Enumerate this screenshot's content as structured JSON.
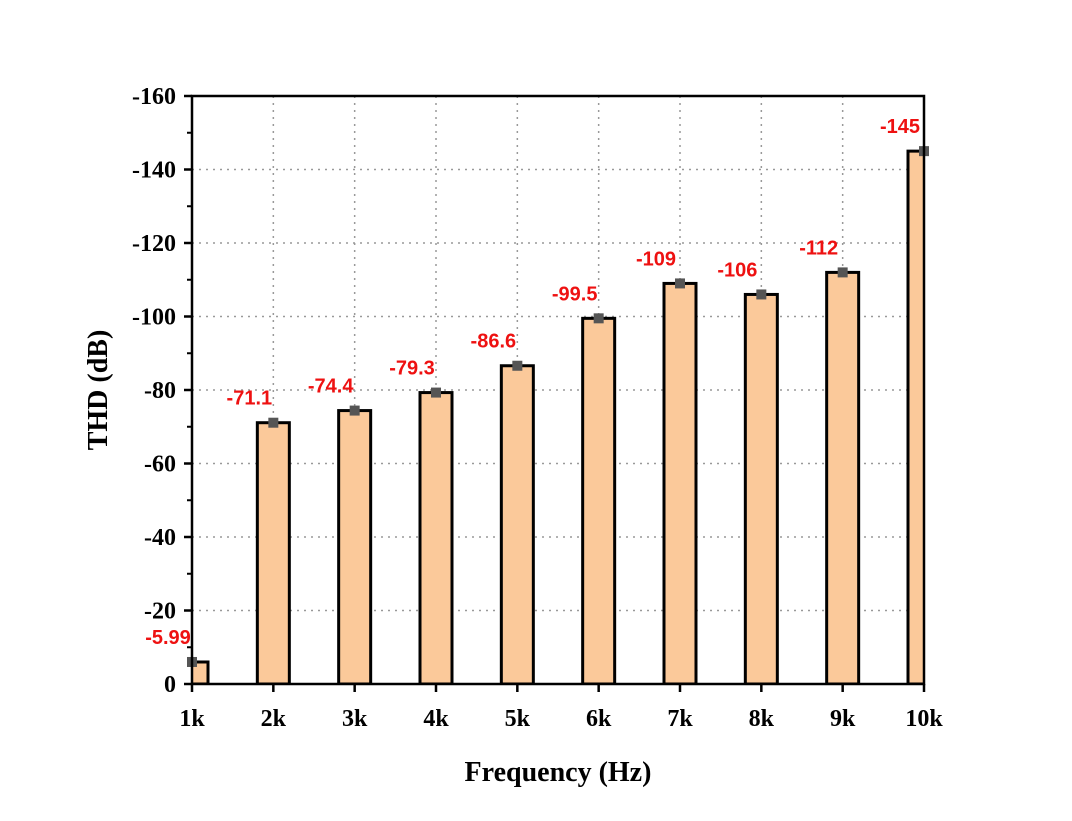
{
  "chart_data": {
    "type": "bar",
    "title": "",
    "xlabel": "Frequency (Hz)",
    "ylabel": "THD (dB)",
    "categories": [
      "1k",
      "2k",
      "3k",
      "4k",
      "5k",
      "6k",
      "7k",
      "8k",
      "9k",
      "10k"
    ],
    "values": [
      -5.99,
      -71.1,
      -74.4,
      -79.3,
      -86.6,
      -99.5,
      -109,
      -106,
      -112,
      -145
    ],
    "data_labels": [
      "-5.99",
      "-71.1",
      "-74.4",
      "-79.3",
      "-86.6",
      "-99.5",
      "-109",
      "-106",
      "-112",
      "-145"
    ],
    "ylim": [
      0,
      -160
    ],
    "yticks": [
      0,
      -20,
      -40,
      -60,
      -80,
      -100,
      -120,
      -140,
      -160
    ],
    "ytick_labels": [
      "0",
      "-20",
      "-40",
      "-60",
      "-80",
      "-100",
      "-120",
      "-140",
      "-160"
    ],
    "y_axis_inverted": true,
    "grid": true,
    "bar_color": "#FBC99A",
    "bar_edge_color": "#000000",
    "marker_color": "#555555",
    "label_color": "#EE1111"
  }
}
